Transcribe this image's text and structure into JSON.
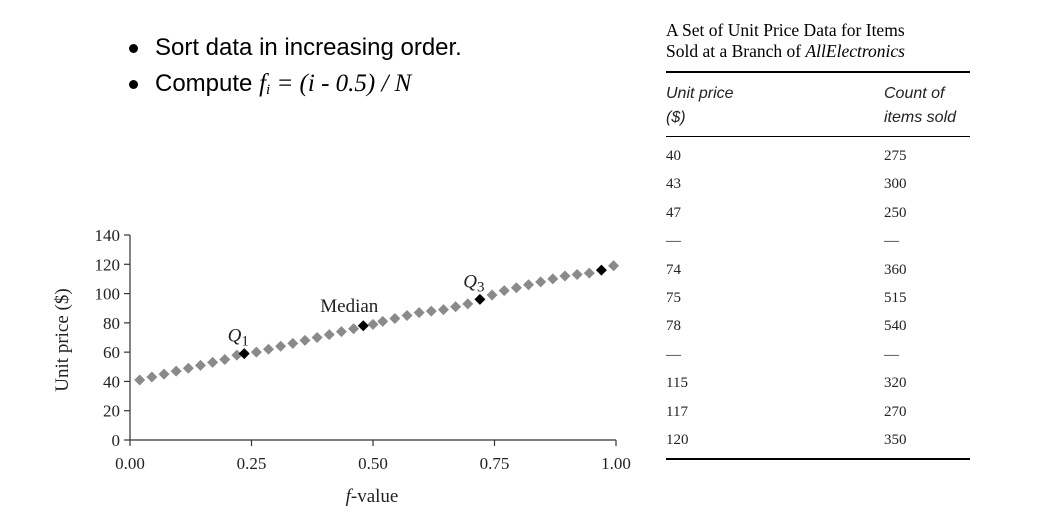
{
  "bullets": {
    "b1": "Sort data in increasing order.",
    "b2_prefix": "Compute ",
    "b2_f": "f",
    "b2_sub": "i",
    "b2_rest": " = (i - 0.5) / N"
  },
  "chart_data": {
    "type": "scatter",
    "xlabel_italic": "f",
    "xlabel_rest": "-value",
    "ylabel": "Unit price ($)",
    "xlim": [
      0,
      1
    ],
    "ylim": [
      0,
      140
    ],
    "x_ticks": [
      "0.00",
      "0.25",
      "0.50",
      "0.75",
      "1.00"
    ],
    "y_ticks": [
      "0",
      "20",
      "40",
      "60",
      "80",
      "100",
      "120",
      "140"
    ],
    "grid": false,
    "points": [
      [
        0.02,
        41
      ],
      [
        0.045,
        43
      ],
      [
        0.07,
        45
      ],
      [
        0.095,
        47
      ],
      [
        0.12,
        49
      ],
      [
        0.145,
        51
      ],
      [
        0.17,
        53
      ],
      [
        0.195,
        55
      ],
      [
        0.22,
        58
      ],
      [
        0.26,
        60
      ],
      [
        0.285,
        62
      ],
      [
        0.31,
        64
      ],
      [
        0.335,
        66
      ],
      [
        0.36,
        68
      ],
      [
        0.385,
        70
      ],
      [
        0.41,
        72
      ],
      [
        0.435,
        74
      ],
      [
        0.46,
        76
      ],
      [
        0.5,
        79
      ],
      [
        0.52,
        81
      ],
      [
        0.545,
        83
      ],
      [
        0.57,
        85
      ],
      [
        0.595,
        87
      ],
      [
        0.62,
        88
      ],
      [
        0.645,
        89
      ],
      [
        0.67,
        91
      ],
      [
        0.695,
        93
      ],
      [
        0.745,
        99
      ],
      [
        0.77,
        102
      ],
      [
        0.795,
        104
      ],
      [
        0.82,
        106
      ],
      [
        0.845,
        108
      ],
      [
        0.87,
        110
      ],
      [
        0.895,
        112
      ],
      [
        0.92,
        113
      ],
      [
        0.945,
        114
      ],
      [
        0.995,
        119
      ]
    ],
    "highlights": [
      {
        "label": "Q",
        "sub": "1",
        "x": 0.235,
        "y": 59
      },
      {
        "label": "Median",
        "sub": "",
        "x": 0.48,
        "y": 78
      },
      {
        "label": "Q",
        "sub": "3",
        "x": 0.72,
        "y": 96
      },
      {
        "label": "",
        "sub": "",
        "x": 0.97,
        "y": 116
      }
    ],
    "point_color": "#8a8a8a",
    "highlight_color": "#000000"
  },
  "table": {
    "title_line1": "A Set of Unit Price Data for Items",
    "title_line2_prefix": "Sold at a Branch of ",
    "title_line2_italic": "AllElectronics",
    "col1_header_l1": "Unit price",
    "col1_header_l2": "($)",
    "col2_header_l1": "Count of",
    "col2_header_l2": "items sold",
    "rows": [
      [
        "40",
        "275"
      ],
      [
        "43",
        "300"
      ],
      [
        "47",
        "250"
      ],
      [
        "—",
        "—"
      ],
      [
        "74",
        "360"
      ],
      [
        "75",
        "515"
      ],
      [
        "78",
        "540"
      ],
      [
        "—",
        "—"
      ],
      [
        "115",
        "320"
      ],
      [
        "117",
        "270"
      ],
      [
        "120",
        "350"
      ]
    ]
  }
}
